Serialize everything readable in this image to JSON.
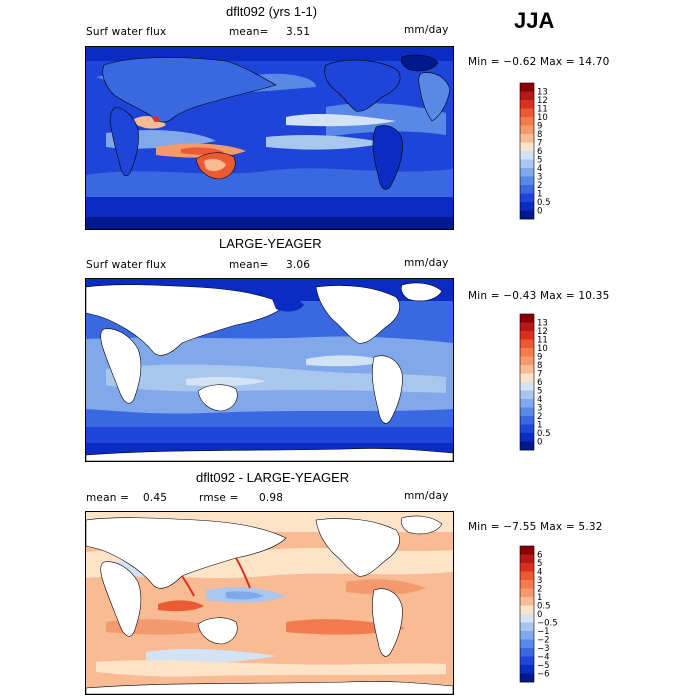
{
  "season": "JJA",
  "panels": [
    {
      "title": "dflt092 (yrs 1-1)",
      "left_label": "Surf water flux",
      "mid_label": "mean=",
      "mid_value": "3.51",
      "units": "mm/day",
      "minmax": "Min =  −0.62 Max =   14.70",
      "colorbar": {
        "labels": [
          "13",
          "12",
          "11",
          "10",
          "9",
          "8",
          "7",
          "6",
          "5",
          "4",
          "3",
          "2",
          "1",
          "0.5",
          "0"
        ],
        "colors": [
          "#8b0000",
          "#b61717",
          "#d9301e",
          "#ec5a33",
          "#f27c4e",
          "#f59a6f",
          "#f8bb93",
          "#fde3c8",
          "#d3e3f6",
          "#a9c6ef",
          "#80a8ea",
          "#5a88e6",
          "#3a68e0",
          "#1e45d8",
          "#0a2cc2",
          "#001a8e"
        ]
      }
    },
    {
      "title": "LARGE-YEAGER",
      "left_label": "Surf water flux",
      "mid_label": "mean=",
      "mid_value": "3.06",
      "units": "mm/day",
      "minmax": "Min =  −0.43 Max =   10.35",
      "colorbar": {
        "labels": [
          "13",
          "12",
          "11",
          "10",
          "9",
          "8",
          "7",
          "6",
          "5",
          "4",
          "3",
          "2",
          "1",
          "0.5",
          "0"
        ],
        "colors": [
          "#8b0000",
          "#b61717",
          "#d9301e",
          "#ec5a33",
          "#f27c4e",
          "#f59a6f",
          "#f8bb93",
          "#fde3c8",
          "#d3e3f6",
          "#a9c6ef",
          "#80a8ea",
          "#5a88e6",
          "#3a68e0",
          "#1e45d8",
          "#0a2cc2",
          "#001a8e"
        ]
      }
    },
    {
      "title": "dflt092 - LARGE-YEAGER",
      "left_label": "mean =",
      "left_value": "0.45",
      "mid_label": "rmse =",
      "mid_value": "0.98",
      "units": "mm/day",
      "minmax": "Min =  −7.55 Max =    5.32",
      "colorbar": {
        "labels": [
          "6",
          "5",
          "4",
          "3",
          "2",
          "1",
          "0.5",
          "0",
          "−0.5",
          "−1",
          "−2",
          "−3",
          "−4",
          "−5",
          "−6"
        ],
        "colors": [
          "#8b0000",
          "#b61717",
          "#d9301e",
          "#ec5a33",
          "#f27c4e",
          "#f59a6f",
          "#f8bb93",
          "#fde3c8",
          "#d3e3f6",
          "#a9c6ef",
          "#80a8ea",
          "#5a88e6",
          "#3a68e0",
          "#1e45d8",
          "#0a2cc2",
          "#001a8e"
        ]
      }
    }
  ]
}
